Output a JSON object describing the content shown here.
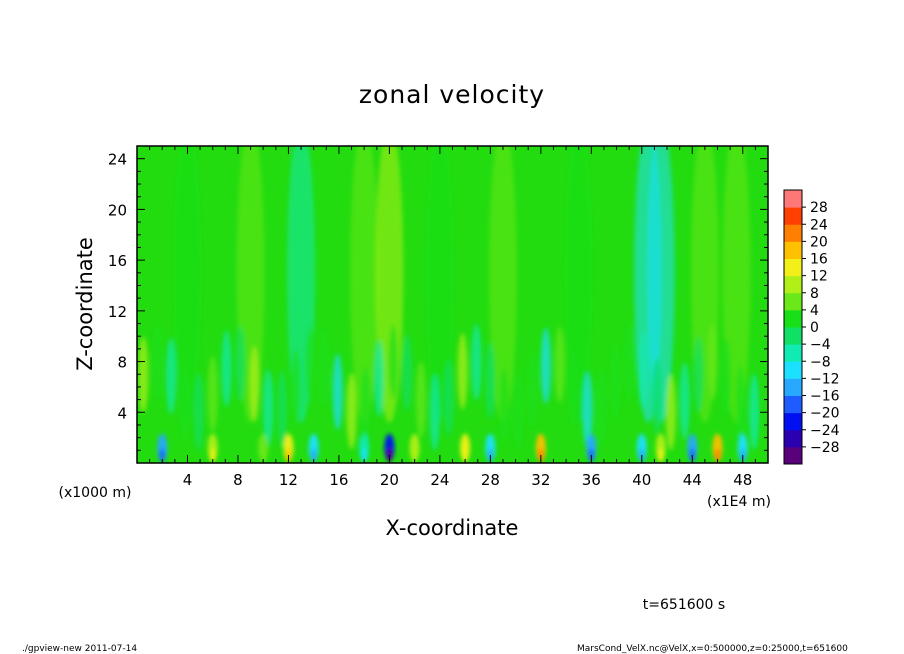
{
  "chart_data": {
    "type": "heatmap",
    "title": "zonal velocity",
    "xlabel": "X-coordinate",
    "ylabel": "Z-coordinate",
    "x_unit": "(x1E4 m)",
    "y_unit": "(x1000 m)",
    "xlim": [
      0,
      50
    ],
    "ylim": [
      0,
      25
    ],
    "x_ticks": [
      4,
      8,
      12,
      16,
      20,
      24,
      28,
      32,
      36,
      40,
      44,
      48
    ],
    "y_ticks": [
      4,
      8,
      12,
      16,
      20,
      24
    ],
    "x_tick_labels": [
      "4",
      "8",
      "12",
      "16",
      "20",
      "24",
      "28",
      "32",
      "36",
      "40",
      "44",
      "48"
    ],
    "y_tick_labels": [
      "4",
      "8",
      "12",
      "16",
      "20",
      "24"
    ],
    "colorbar": {
      "levels": [
        -32,
        -28,
        -24,
        -20,
        -16,
        -12,
        -8,
        -4,
        0,
        4,
        8,
        12,
        16,
        20,
        24,
        28,
        32
      ],
      "colors": [
        "#5a007a",
        "#2a00b0",
        "#0010f0",
        "#1e5cff",
        "#28a8ff",
        "#1ce0ff",
        "#12eab4",
        "#10e064",
        "#18e018",
        "#6ae818",
        "#b0f018",
        "#f2f018",
        "#ffc000",
        "#ff8000",
        "#ff4000",
        "#ff7878"
      ],
      "labels": [
        "28",
        "24",
        "20",
        "16",
        "12",
        "8",
        "4",
        "0",
        "−4",
        "−8",
        "−12",
        "−16",
        "−20",
        "−24",
        "−28"
      ],
      "label_values": [
        28,
        24,
        20,
        16,
        12,
        8,
        4,
        0,
        -4,
        -8,
        -12,
        -16,
        -20,
        -24,
        -28
      ]
    },
    "field_description_samples": {
      "x": [
        2,
        6,
        10,
        12,
        14,
        18,
        20,
        22,
        26,
        28,
        32,
        36,
        40,
        41.5,
        44,
        46,
        48
      ],
      "near_surface_u": [
        -14,
        10,
        6,
        14,
        -12,
        -8,
        -24,
        8,
        12,
        -10,
        16,
        -14,
        -10,
        10,
        -14,
        16,
        -12
      ]
    }
  },
  "footer": {
    "time_label": "t=651600 s",
    "program_label": "./gpview-new  2011-07-14",
    "source_label": "MarsCond_VelX.nc@VelX,x=0:500000,z=0:25000,t=651600"
  }
}
